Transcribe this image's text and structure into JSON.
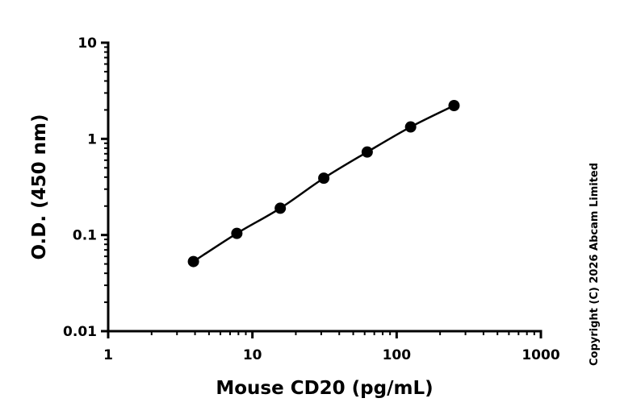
{
  "chart_data": {
    "type": "line",
    "xlabel": "Mouse CD20 (pg/mL)",
    "ylabel": "O.D. (450 nm)",
    "x_scale": "log",
    "y_scale": "log",
    "xlim": [
      1,
      1000
    ],
    "ylim": [
      0.01,
      10
    ],
    "x_ticks": [
      "1",
      "10",
      "100",
      "1000"
    ],
    "y_ticks": [
      "0.01",
      "0.1",
      "1",
      "10"
    ],
    "grid": false,
    "series": [
      {
        "color": "#000000",
        "marker": "circle",
        "x": [
          3.9,
          7.8,
          15.6,
          31.25,
          62.5,
          125,
          250
        ],
        "y": [
          0.053,
          0.104,
          0.19,
          0.39,
          0.73,
          1.33,
          2.22
        ]
      }
    ]
  },
  "copyright": "Copyright (C) 2026 Abcam Limited"
}
